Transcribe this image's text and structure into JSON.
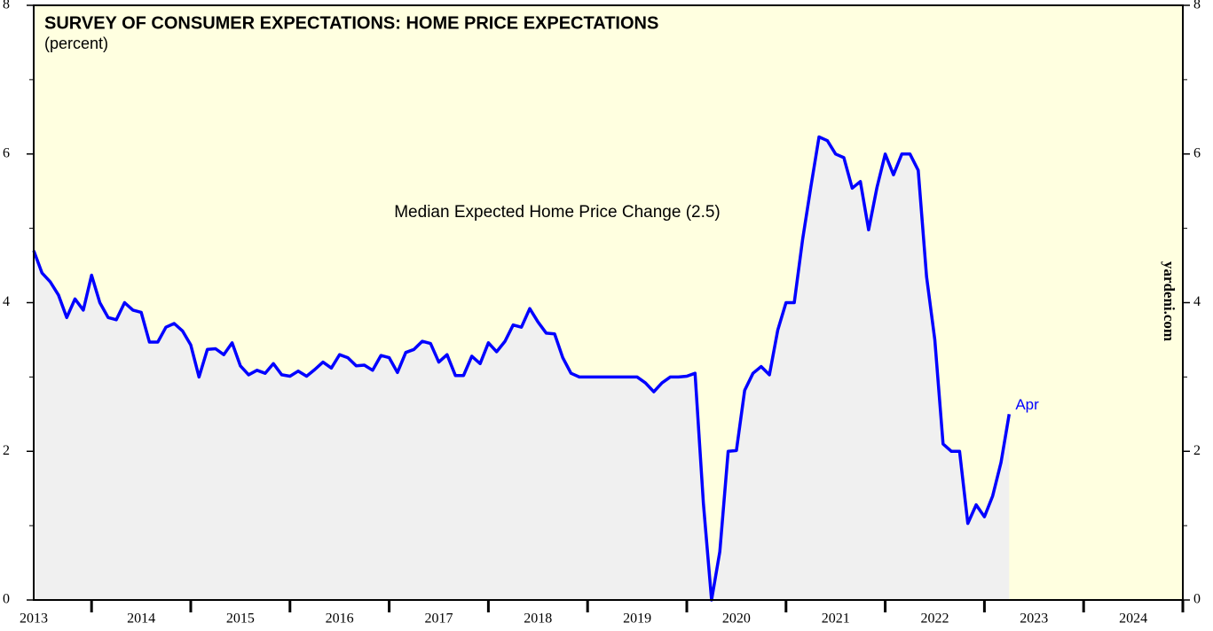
{
  "chart_data": {
    "type": "line",
    "title": "SURVEY OF CONSUMER EXPECTATIONS: HOME PRICE EXPECTATIONS",
    "subtitle": "(percent)",
    "annotation": "Median Expected Home Price Change (2.5)",
    "end_label": "Apr",
    "watermark": "yardeni.com",
    "x": [
      2013.417,
      2013.5,
      2013.583,
      2013.667,
      2013.75,
      2013.833,
      2013.917,
      2014,
      2014.083,
      2014.167,
      2014.25,
      2014.333,
      2014.417,
      2014.5,
      2014.583,
      2014.667,
      2014.75,
      2014.833,
      2014.917,
      2015,
      2015.083,
      2015.167,
      2015.25,
      2015.333,
      2015.417,
      2015.5,
      2015.583,
      2015.667,
      2015.75,
      2015.833,
      2015.917,
      2016,
      2016.083,
      2016.167,
      2016.25,
      2016.333,
      2016.417,
      2016.5,
      2016.583,
      2016.667,
      2016.75,
      2016.833,
      2016.917,
      2017,
      2017.083,
      2017.167,
      2017.25,
      2017.333,
      2017.417,
      2017.5,
      2017.583,
      2017.667,
      2017.75,
      2017.833,
      2017.917,
      2018,
      2018.083,
      2018.167,
      2018.25,
      2018.333,
      2018.417,
      2018.5,
      2018.583,
      2018.667,
      2018.75,
      2018.833,
      2018.917,
      2019,
      2019.083,
      2019.167,
      2019.25,
      2019.333,
      2019.417,
      2019.5,
      2019.583,
      2019.667,
      2019.75,
      2019.833,
      2019.917,
      2020,
      2020.083,
      2020.167,
      2020.25,
      2020.333,
      2020.417,
      2020.5,
      2020.583,
      2020.667,
      2020.75,
      2020.833,
      2020.917,
      2021,
      2021.083,
      2021.167,
      2021.25,
      2021.333,
      2021.417,
      2021.5,
      2021.583,
      2021.667,
      2021.75,
      2021.833,
      2021.917,
      2022,
      2022.083,
      2022.167,
      2022.25,
      2022.333,
      2022.417,
      2022.5,
      2022.583,
      2022.667,
      2022.75,
      2022.833,
      2022.917,
      2023,
      2023.083,
      2023.167,
      2023.25
    ],
    "series": [
      {
        "name": "Median Expected Home Price Change",
        "color": "#0000ff",
        "fill": "#f0f0f0",
        "values": [
          4.7,
          4.4,
          4.28,
          4.1,
          3.8,
          4.05,
          3.9,
          4.37,
          4.0,
          3.8,
          3.77,
          4.0,
          3.9,
          3.87,
          3.47,
          3.47,
          3.67,
          3.72,
          3.62,
          3.43,
          3.0,
          3.37,
          3.38,
          3.3,
          3.46,
          3.15,
          3.03,
          3.09,
          3.05,
          3.18,
          3.03,
          3.01,
          3.08,
          3.01,
          3.1,
          3.2,
          3.12,
          3.3,
          3.26,
          3.15,
          3.16,
          3.09,
          3.29,
          3.26,
          3.06,
          3.33,
          3.37,
          3.48,
          3.45,
          3.2,
          3.3,
          3.02,
          3.02,
          3.28,
          3.18,
          3.46,
          3.34,
          3.48,
          3.7,
          3.67,
          3.92,
          3.74,
          3.59,
          3.58,
          3.26,
          3.05,
          3.0,
          3.0,
          3.0,
          3.0,
          3.0,
          3.0,
          3.0,
          3.0,
          2.92,
          2.8,
          2.92,
          3.0,
          3.0,
          3.01,
          3.05,
          1.3,
          0.0,
          0.65,
          2.0,
          2.01,
          2.82,
          3.05,
          3.14,
          3.03,
          3.63,
          4.0,
          4.0,
          4.85,
          5.55,
          6.23,
          6.18,
          6.0,
          5.95,
          5.54,
          5.63,
          4.98,
          5.55,
          6.0,
          5.72,
          6.0,
          6.0,
          5.78,
          4.35,
          3.5,
          2.1,
          2.0,
          2.0,
          1.03,
          1.28,
          1.12,
          1.4,
          1.85,
          2.5
        ]
      }
    ],
    "xlim": [
      2013.417,
      2025
    ],
    "xticks": [
      2014,
      2015,
      2016,
      2017,
      2018,
      2019,
      2020,
      2021,
      2022,
      2023,
      2024,
      2025
    ],
    "xtick_labels": [
      {
        "value": 2013.417,
        "label": "2013"
      },
      {
        "value": 2014.5,
        "label": "2014"
      },
      {
        "value": 2015.5,
        "label": "2015"
      },
      {
        "value": 2016.5,
        "label": "2016"
      },
      {
        "value": 2017.5,
        "label": "2017"
      },
      {
        "value": 2018.5,
        "label": "2018"
      },
      {
        "value": 2019.5,
        "label": "2019"
      },
      {
        "value": 2020.5,
        "label": "2020"
      },
      {
        "value": 2021.5,
        "label": "2021"
      },
      {
        "value": 2022.5,
        "label": "2022"
      },
      {
        "value": 2023.5,
        "label": "2023"
      },
      {
        "value": 2024.5,
        "label": "2024"
      }
    ],
    "ylim": [
      0,
      8
    ],
    "yticks": [
      0,
      2,
      4,
      6,
      8
    ],
    "yminor": [
      1,
      3,
      5,
      7
    ],
    "y2lim": [
      0,
      8
    ],
    "y2ticks": [
      0,
      2,
      4,
      6,
      8
    ],
    "background": "#ffffe0"
  }
}
